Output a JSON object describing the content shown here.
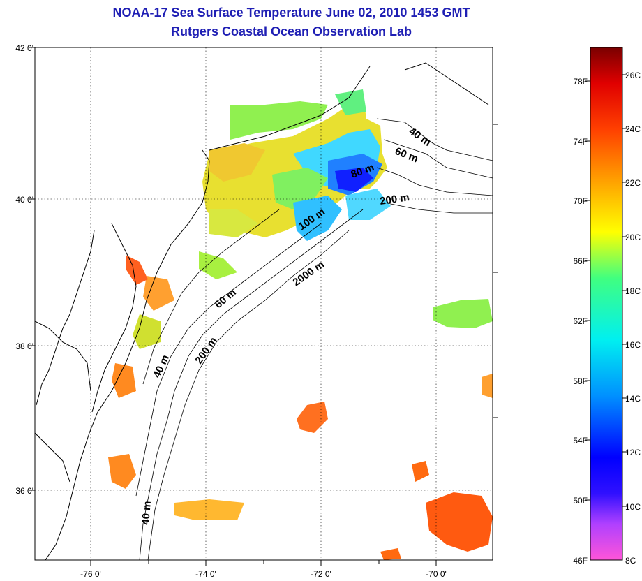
{
  "title_line1": "NOAA-17 Sea Surface Temperature June 02, 2010 1453 GMT",
  "title_line2": "Rutgers Coastal Ocean Observation Lab",
  "map": {
    "lat_labels": [
      "42 0'",
      "40 0'",
      "38 0'",
      "36 0'"
    ],
    "lon_labels": [
      "-76 0'",
      "-74 0'",
      "-72 0'",
      "-70 0'"
    ],
    "lat_range": [
      35.0,
      42.0
    ],
    "lon_range": [
      -77.0,
      -69.0
    ],
    "gridlines": "dotted",
    "contour_labels": [
      "40 m",
      "60 m",
      "80 m",
      "200 m",
      "100 m",
      "2000 m",
      "60 m",
      "200 m",
      "40 m",
      "40 m"
    ]
  },
  "colorbar": {
    "fahrenheit_labels": [
      "78F",
      "74F",
      "70F",
      "66F",
      "62F",
      "58F",
      "54F",
      "50F",
      "46F"
    ],
    "celsius_labels": [
      "26C",
      "24C",
      "22C",
      "20C",
      "18C",
      "16C",
      "14C",
      "12C",
      "10C",
      "8C"
    ],
    "range_c": [
      8,
      27
    ],
    "colors": [
      "#ff55d8",
      "#8a30ff",
      "#0000ff",
      "#0090ff",
      "#00e8ff",
      "#40ff80",
      "#ffff00",
      "#ff9900",
      "#ff2000",
      "#8a0000"
    ]
  }
}
